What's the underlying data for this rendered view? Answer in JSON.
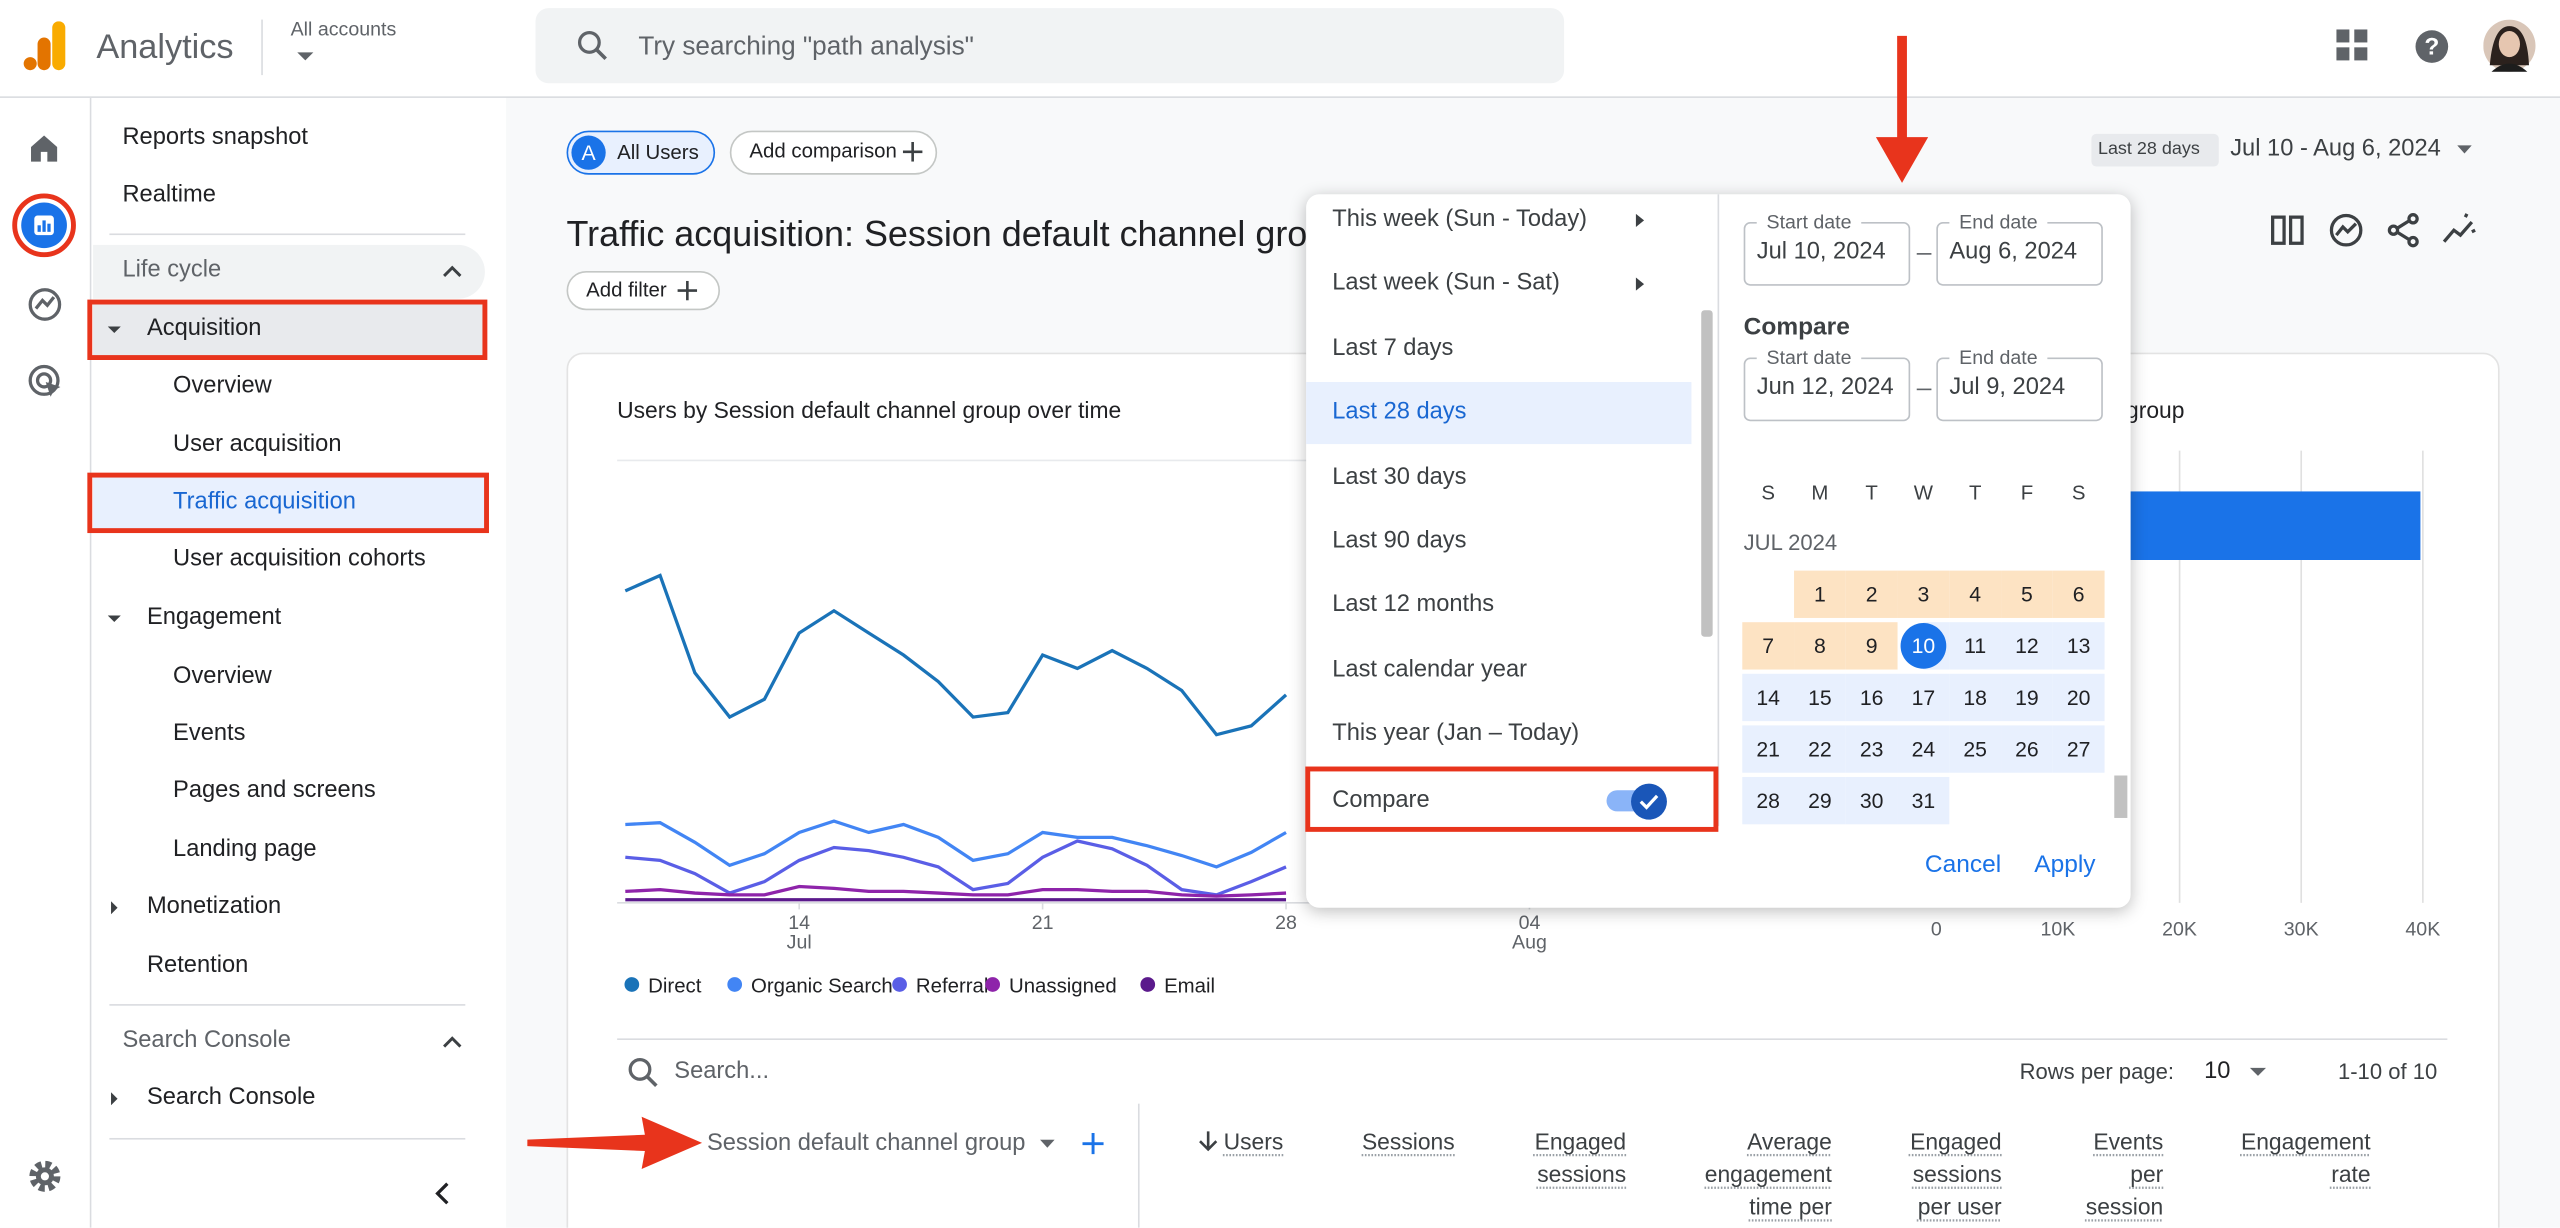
{
  "header": {
    "app_name": "Analytics",
    "account_label": "All accounts",
    "search_placeholder": "Try searching \"path analysis\""
  },
  "sidebar": {
    "items": [
      "Reports snapshot",
      "Realtime",
      "Life cycle",
      "Acquisition",
      "Overview",
      "User acquisition",
      "Traffic acquisition",
      "User acquisition cohorts",
      "Engagement",
      "Overview",
      "Events",
      "Pages and screens",
      "Landing page",
      "Monetization",
      "Retention",
      "Search Console",
      "Search Console"
    ]
  },
  "toolbar": {
    "segment_badge": "A",
    "segment": "All Users",
    "add_comparison": "Add comparison",
    "date_preset": "Last 28 days",
    "date_range": "Jul 10 - Aug 6, 2024",
    "report_title": "Traffic acquisition: Session default channel group",
    "add_filter": "Add filter"
  },
  "chart_data": [
    {
      "type": "line",
      "title": "Users by Session default channel group over time",
      "x": [
        "Jul 9",
        "Jul 10",
        "Jul 11",
        "Jul 12",
        "Jul 13",
        "Jul 14",
        "Jul 15",
        "Jul 16",
        "Jul 17",
        "Jul 18",
        "Jul 19",
        "Jul 20",
        "Jul 21",
        "Jul 22",
        "Jul 23",
        "Jul 24",
        "Jul 25",
        "Jul 26",
        "Jul 27",
        "Jul 28"
      ],
      "ylim": [
        0,
        100
      ],
      "xticks": [
        {
          "value": "Jul 14",
          "label": "14",
          "month": "Jul"
        },
        {
          "value": "Jul 21",
          "label": "21"
        },
        {
          "value": "Jul 28",
          "label": "28"
        },
        {
          "value": "Aug 4",
          "label": "04",
          "month": "Aug"
        }
      ],
      "series": [
        {
          "name": "Direct",
          "color": "#1a73b8",
          "values": [
            70.5,
            74,
            52,
            42,
            46,
            61,
            66,
            61,
            56,
            50,
            42,
            43,
            56,
            53,
            57,
            53,
            48,
            38,
            40,
            47
          ]
        },
        {
          "name": "Organic Search",
          "color": "#4285f4",
          "values": [
            17.7,
            18.1,
            13.7,
            8.5,
            11.1,
            15.9,
            18.5,
            15.9,
            17.7,
            14.8,
            9.6,
            11.1,
            15.9,
            14.8,
            14.8,
            12.9,
            10.7,
            8.1,
            11.4,
            15.9
          ]
        },
        {
          "name": "Referral",
          "color": "#5a5ee6",
          "values": [
            10.3,
            9.6,
            6.6,
            2.2,
            4.8,
            9.6,
            12.5,
            11.8,
            10.3,
            8.1,
            3.0,
            4.4,
            10.3,
            14.0,
            12.2,
            8.5,
            3.0,
            1.8,
            4.8,
            8.1
          ]
        },
        {
          "name": "Unassigned",
          "color": "#8e24aa",
          "values": [
            2.6,
            3.0,
            2.2,
            1.8,
            1.8,
            3.7,
            3.3,
            2.6,
            2.6,
            2.2,
            1.8,
            1.8,
            3.0,
            3.0,
            2.6,
            2.6,
            1.8,
            1.5,
            1.8,
            2.2
          ]
        },
        {
          "name": "Email",
          "color": "#5b1a8c",
          "values": [
            0.7,
            0.7,
            0.7,
            0.7,
            0.7,
            0.7,
            0.7,
            0.7,
            0.7,
            0.7,
            0.7,
            0.7,
            0.7,
            0.7,
            0.7,
            0.7,
            0.7,
            0.7,
            0.7,
            0.7
          ]
        }
      ]
    },
    {
      "type": "bar",
      "orientation": "horizontal",
      "title": "Users by Session default channel group",
      "categories": [
        null
      ],
      "values": [
        39800
      ],
      "color": "#1a73e8",
      "xlim": [
        0,
        40000
      ],
      "xticks": [
        0,
        {
          "value": 10000,
          "label": "10K"
        },
        {
          "value": 20000,
          "label": "20K"
        },
        {
          "value": 30000,
          "label": "30K"
        },
        {
          "value": 40000,
          "label": "40K"
        }
      ],
      "grid": true
    }
  ],
  "date_picker": {
    "presets": [
      {
        "label": "This week (Sun - Today)",
        "submenu": true
      },
      {
        "label": "Last week (Sun - Sat)",
        "submenu": true
      },
      {
        "label": "Last 7 days"
      },
      {
        "label": "Last 28 days",
        "selected": true
      },
      {
        "label": "Last 30 days"
      },
      {
        "label": "Last 90 days"
      },
      {
        "label": "Last 12 months"
      },
      {
        "label": "Last calendar year"
      },
      {
        "label": "This year (Jan – Today)"
      }
    ],
    "compare": {
      "label": "Compare",
      "enabled": true
    },
    "range": {
      "start_label": "Start date",
      "start": "Jul 10, 2024",
      "end_label": "End date",
      "end": "Aug 6, 2024"
    },
    "compare_heading": "Compare",
    "compare_range": {
      "start_label": "Start date",
      "start": "Jun 12, 2024",
      "end_label": "End date",
      "end": "Jul 9, 2024"
    },
    "weekdays": [
      "S",
      "M",
      "T",
      "W",
      "T",
      "F",
      "S"
    ],
    "month": "JUL 2024",
    "days": [
      {
        "day": 1,
        "state": "compare"
      },
      {
        "day": 2,
        "state": "compare"
      },
      {
        "day": 3,
        "state": "compare"
      },
      {
        "day": 4,
        "state": "compare"
      },
      {
        "day": 5,
        "state": "compare"
      },
      {
        "day": 6,
        "state": "compare"
      },
      {
        "day": 7,
        "state": "compare"
      },
      {
        "day": 8,
        "state": "compare"
      },
      {
        "day": 9,
        "state": "compare"
      },
      {
        "day": 10,
        "state": "start"
      },
      {
        "day": 11,
        "state": "range"
      },
      {
        "day": 12,
        "state": "range"
      },
      {
        "day": 13,
        "state": "range"
      },
      {
        "day": 14,
        "state": "range"
      },
      {
        "day": 15,
        "state": "range"
      },
      {
        "day": 16,
        "state": "range"
      },
      {
        "day": 17,
        "state": "range"
      },
      {
        "day": 18,
        "state": "range"
      },
      {
        "day": 19,
        "state": "range"
      },
      {
        "day": 20,
        "state": "range"
      },
      {
        "day": 21,
        "state": "range"
      },
      {
        "day": 22,
        "state": "range"
      },
      {
        "day": 23,
        "state": "range"
      },
      {
        "day": 24,
        "state": "range"
      },
      {
        "day": 25,
        "state": "range"
      },
      {
        "day": 26,
        "state": "range"
      },
      {
        "day": 27,
        "state": "range"
      },
      {
        "day": 28,
        "state": "range"
      },
      {
        "day": 29,
        "state": "range"
      },
      {
        "day": 30,
        "state": "range"
      },
      {
        "day": 31,
        "state": "range"
      }
    ],
    "cancel": "Cancel",
    "apply": "Apply"
  },
  "table": {
    "search_placeholder": "Search...",
    "rows_per_page_label": "Rows per page:",
    "rows_per_page": "10",
    "pagination": "1-10 of 10",
    "dimension_header": "Session default channel group",
    "columns": [
      "Users",
      "Sessions",
      "Engaged sessions",
      "Average engagement time per",
      "Engaged sessions per user",
      "Events per session",
      "Engagement rate"
    ]
  }
}
